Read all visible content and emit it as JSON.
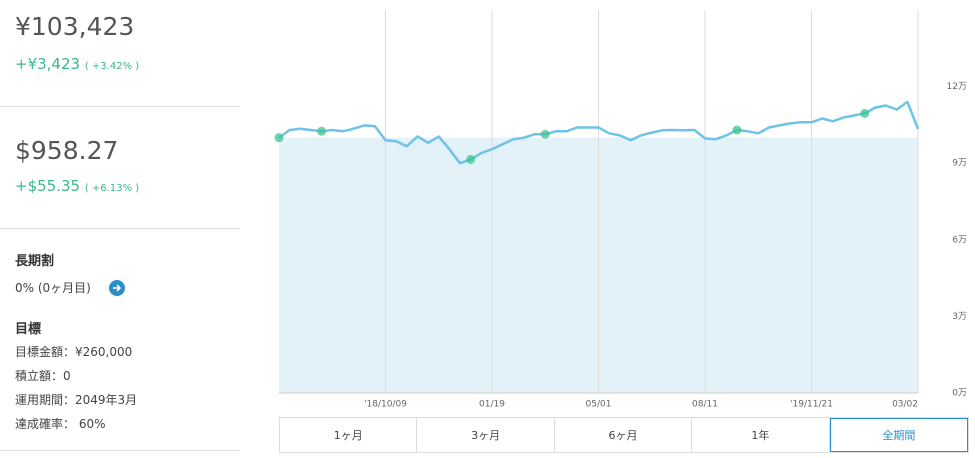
{
  "summary": {
    "total_jpy": "¥103,423",
    "gain_jpy": "+¥3,423",
    "gain_jpy_pct": "( +3.42% )",
    "total_usd": "$958.27",
    "gain_usd": "+$55.35",
    "gain_usd_pct": "( +6.13% )"
  },
  "details": {
    "long_term_title": "長期割",
    "long_term_value": "0% (0ヶ月目)",
    "goal_title": "目標",
    "goal_lines": [
      "目標金額：¥260,000",
      "積立額：0",
      "運用期間：2049年3月",
      "達成確率： 60%"
    ]
  },
  "periods": {
    "buttons": [
      "1ヶ月",
      "3ヶ月",
      "6ヶ月",
      "1年",
      "全期間"
    ],
    "active": 4
  },
  "chart_data": {
    "type": "line",
    "x": [
      0,
      1,
      2,
      3,
      4,
      5,
      6,
      7,
      8,
      9,
      10,
      11,
      12,
      13,
      14,
      15,
      16,
      17,
      18,
      19,
      20,
      21,
      22,
      23,
      24,
      25,
      26,
      27,
      28,
      29,
      30,
      31,
      32,
      33,
      34,
      35,
      36,
      37,
      38,
      39,
      40,
      41,
      42,
      43,
      44,
      45,
      46,
      47,
      48,
      49,
      50,
      51,
      52,
      53,
      54,
      55,
      56,
      57,
      58,
      59,
      60
    ],
    "series": [
      {
        "color": "#6fc3e8",
        "values": [
          100000,
          103000,
          103500,
          103000,
          102500,
          103000,
          102500,
          103500,
          104800,
          104500,
          99000,
          98600,
          96600,
          100500,
          98000,
          100400,
          95500,
          90000,
          91500,
          94000,
          95500,
          97400,
          99400,
          100000,
          101300,
          101300,
          102500,
          102500,
          104000,
          104000,
          104000,
          101700,
          100900,
          99000,
          100900,
          102000,
          102900,
          103000,
          102900,
          103000,
          99700,
          99400,
          100900,
          103000,
          102500,
          101700,
          104000,
          104800,
          105600,
          106000,
          106000,
          107500,
          106400,
          107900,
          108700,
          109500,
          111800,
          112600,
          111000,
          114000,
          103423
        ]
      }
    ],
    "highlight_x": [
      0,
      4,
      18,
      25,
      43,
      55
    ],
    "baseline": 100000,
    "area_color": "#e3f1f9",
    "xlim": [
      0,
      60
    ],
    "xticks": [
      {
        "value": 10,
        "label": "'18/10/09"
      },
      {
        "value": 20,
        "label": "01/19"
      },
      {
        "value": 30,
        "label": "05/01"
      },
      {
        "value": 40,
        "label": "08/11"
      },
      {
        "value": 50,
        "label": "'19/11/21"
      },
      {
        "value": 60,
        "label": "03/02"
      }
    ],
    "ylim": [
      0,
      150000
    ],
    "yticks": [
      {
        "value": 0,
        "label": "0万"
      },
      {
        "value": 30000,
        "label": "3万"
      },
      {
        "value": 60000,
        "label": "6万"
      },
      {
        "value": 90000,
        "label": "9万"
      },
      {
        "value": 120000,
        "label": "12万"
      }
    ],
    "grid": true
  }
}
